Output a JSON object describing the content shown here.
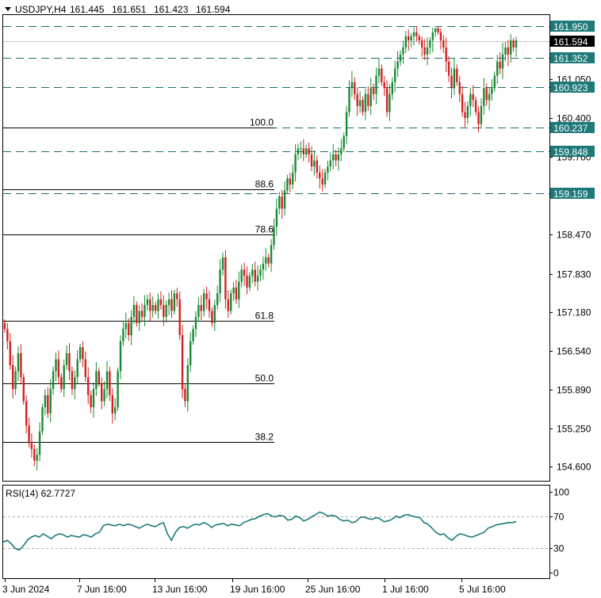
{
  "header": {
    "symbol": "USDJPY,H4",
    "open": "161.445",
    "high": "161.651",
    "low": "161.423",
    "close": "161.594"
  },
  "rsi_label": "RSI(14) 62.7727",
  "colors": {
    "bull": "#1a8a36",
    "bear": "#d42020",
    "level_line": "#1e6e6e",
    "level_box": "#1e7a7a",
    "price_box": "#000000",
    "rsi_line": "#1e7a7a"
  },
  "chart_data": [
    {
      "type": "candlestick",
      "title": "USDJPY,H4",
      "x_labels": [
        "3 Jun 2024",
        "7 Jun 16:00",
        "13 Jun 16:00",
        "19 Jun 16:00",
        "25 Jun 16:00",
        "1 Jul 16:00",
        "5 Jul 16:00"
      ],
      "y_ticks": [
        161.6,
        161.05,
        160.4,
        159.76,
        158.47,
        157.83,
        157.18,
        156.54,
        155.89,
        155.25,
        154.6
      ],
      "y_tick_labels": [
        "161.600",
        "161.050",
        "160.400",
        "159.760",
        "158.470",
        "157.830",
        "157.180",
        "156.540",
        "155.890",
        "155.250",
        "154.600"
      ],
      "ylim": [
        154.4,
        162.0
      ],
      "current_price": 161.594,
      "current_price_label": "161.594",
      "horizontal_levels": [
        161.95,
        161.352,
        160.923,
        160.237,
        159.848,
        159.159
      ],
      "horizontal_level_labels": [
        "161.950",
        "161.352",
        "160.923",
        "160.237",
        "159.848",
        "159.159"
      ],
      "fibonacci_levels": [
        {
          "label": "100.0",
          "price": 160.237
        },
        {
          "label": "88.6",
          "price": 159.226
        },
        {
          "label": "78.6",
          "price": 158.47
        },
        {
          "label": "61.8",
          "price": 157.03
        },
        {
          "label": "50.0",
          "price": 156.0
        },
        {
          "label": "38.2",
          "price": 155.02
        }
      ],
      "closes": [
        156.9,
        156.7,
        156.3,
        155.9,
        156.2,
        156.5,
        156.1,
        155.7,
        155.3,
        155.0,
        154.9,
        154.7,
        154.8,
        155.2,
        155.6,
        155.8,
        155.5,
        155.9,
        156.2,
        156.4,
        156.1,
        155.9,
        156.3,
        156.5,
        156.2,
        155.9,
        156.1,
        156.4,
        156.6,
        156.4,
        156.1,
        155.8,
        155.6,
        155.9,
        156.2,
        156.0,
        155.7,
        155.9,
        156.2,
        155.8,
        155.5,
        155.6,
        156.2,
        156.7,
        156.9,
        157.0,
        156.8,
        157.1,
        157.3,
        157.0,
        157.2,
        157.1,
        157.3,
        157.4,
        157.2,
        157.3,
        157.2,
        157.4,
        157.3,
        157.1,
        157.3,
        157.4,
        157.2,
        157.5,
        157.4,
        156.8,
        155.9,
        155.7,
        156.3,
        156.7,
        156.9,
        157.1,
        157.3,
        157.2,
        157.5,
        157.4,
        157.2,
        157.0,
        157.3,
        157.5,
        157.9,
        158.1,
        157.4,
        157.2,
        157.5,
        157.6,
        157.4,
        157.7,
        157.9,
        157.8,
        157.6,
        157.8,
        157.9,
        157.7,
        157.8,
        157.9,
        158.0,
        158.1,
        158.0,
        158.3,
        158.6,
        158.9,
        159.1,
        158.9,
        159.2,
        159.4,
        159.3,
        159.5,
        159.8,
        159.9,
        159.9,
        159.8,
        159.9,
        159.8,
        159.6,
        159.7,
        159.5,
        159.4,
        159.3,
        159.5,
        159.6,
        159.7,
        159.8,
        159.7,
        159.8,
        159.9,
        160.1,
        160.5,
        160.9,
        161.0,
        160.8,
        160.6,
        160.7,
        160.5,
        160.8,
        160.6,
        160.9,
        160.8,
        161.1,
        161.2,
        161.0,
        160.9,
        160.5,
        160.8,
        161.0,
        161.2,
        161.3,
        161.4,
        161.5,
        161.7,
        161.6,
        161.7,
        161.8,
        161.7,
        161.6,
        161.5,
        161.4,
        161.5,
        161.6,
        161.8,
        161.9,
        161.8,
        161.6,
        161.5,
        161.3,
        161.1,
        160.9,
        161.2,
        161.0,
        160.8,
        160.5,
        160.4,
        160.6,
        160.8,
        160.7,
        160.5,
        160.3,
        160.6,
        160.9,
        160.7,
        160.8,
        160.9,
        161.1,
        161.3,
        161.2,
        161.4,
        161.5,
        161.4,
        161.6,
        161.5,
        161.6
      ]
    },
    {
      "type": "line",
      "title": "RSI(14) 62.7727",
      "y_ticks": [
        100,
        70,
        30,
        0
      ],
      "y_tick_labels": [
        "100",
        "70",
        "30",
        "0"
      ],
      "ylim": [
        0,
        100
      ],
      "levels": [
        70,
        30
      ],
      "values": [
        38,
        40,
        36,
        30,
        28,
        33,
        40,
        44,
        46,
        44,
        48,
        45,
        42,
        46,
        48,
        47,
        44,
        46,
        45,
        44,
        47,
        46,
        44,
        48,
        50,
        58,
        60,
        59,
        58,
        60,
        58,
        60,
        59,
        57,
        55,
        58,
        60,
        58,
        57,
        60,
        62,
        48,
        40,
        50,
        56,
        57,
        55,
        58,
        60,
        59,
        62,
        60,
        56,
        59,
        60,
        61,
        58,
        60,
        59,
        58,
        62,
        64,
        66,
        67,
        70,
        72,
        73,
        70,
        69,
        71,
        70,
        65,
        66,
        70,
        68,
        64,
        66,
        69,
        72,
        75,
        73,
        70,
        71,
        70,
        66,
        64,
        65,
        62,
        63,
        68,
        69,
        67,
        66,
        68,
        67,
        63,
        64,
        66,
        70,
        68,
        71,
        72,
        70,
        69,
        68,
        62,
        60,
        55,
        50,
        47,
        48,
        43,
        40,
        45,
        48,
        47,
        45,
        44,
        46,
        48,
        50,
        55,
        57,
        59,
        60,
        61,
        62,
        62,
        63
      ]
    }
  ]
}
